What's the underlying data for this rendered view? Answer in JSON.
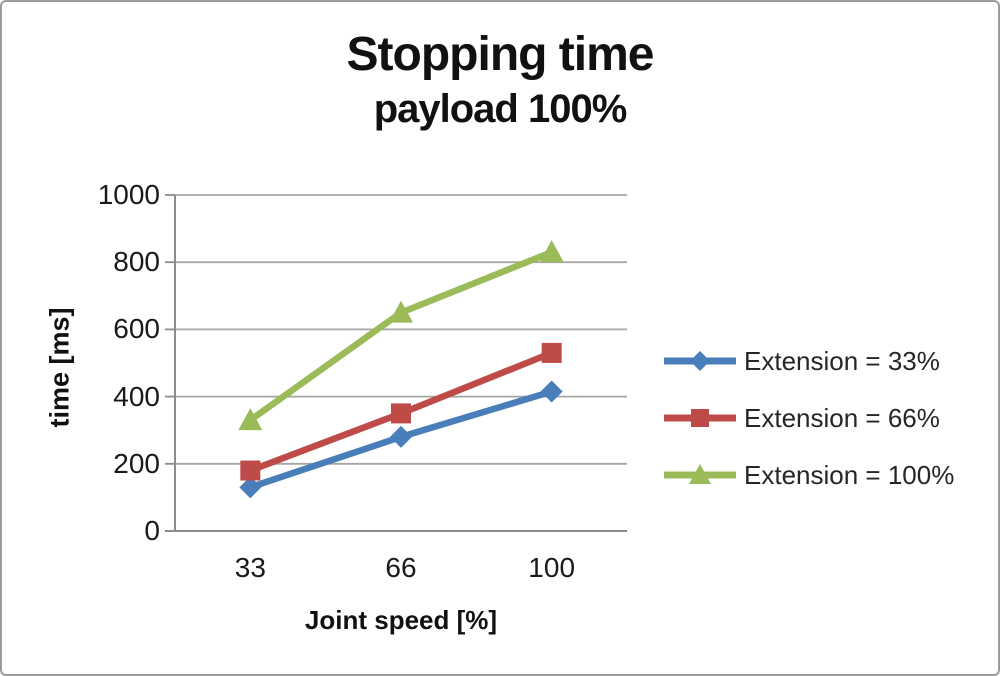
{
  "chart_data": {
    "type": "line",
    "title": "Stopping time",
    "subtitle": "payload 100%",
    "xlabel": "Joint speed [%]",
    "ylabel": "time [ms]",
    "categories": [
      "33",
      "66",
      "100"
    ],
    "series": [
      {
        "name": "Extension = 33%",
        "values": [
          130,
          280,
          415
        ],
        "color": "#4A7EBB",
        "marker": "diamond"
      },
      {
        "name": "Extension = 66%",
        "values": [
          180,
          350,
          530
        ],
        "color": "#BE4B48",
        "marker": "square"
      },
      {
        "name": "Extension = 100%",
        "values": [
          330,
          650,
          830
        ],
        "color": "#9BBB59",
        "marker": "triangle"
      }
    ],
    "ylim": [
      0,
      1000
    ],
    "yticks": [
      0,
      200,
      400,
      600,
      800,
      1000
    ],
    "grid": "horizontal",
    "legend_position": "right",
    "colors": {
      "gridline": "#A6A6A6",
      "axis": "#8C8C8C",
      "text": "#1A1A1A"
    }
  }
}
